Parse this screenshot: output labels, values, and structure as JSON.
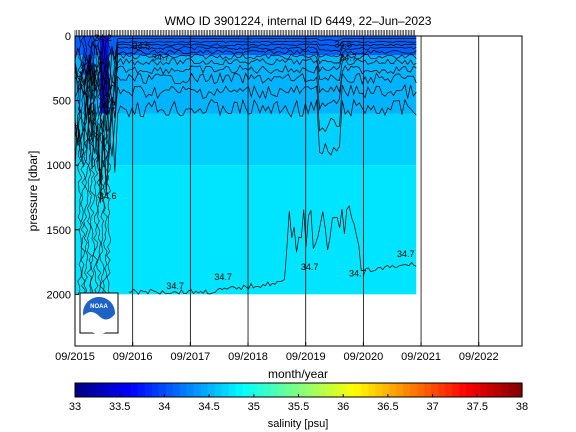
{
  "chart_data": {
    "type": "heatmap",
    "title": "WMO ID 3901224, internal ID 6449, 22–Jun–2023",
    "xlabel": "month/year",
    "ylabel": "pressure [dbar]",
    "x_tick_labels": [
      "09/2015",
      "09/2016",
      "09/2017",
      "09/2018",
      "09/2019",
      "09/2020",
      "09/2021",
      "09/2022"
    ],
    "x_range": [
      "2015-09",
      "2023-06"
    ],
    "data_end": "2021-08",
    "ylim": [
      2400,
      0
    ],
    "y_ticks": [
      0,
      500,
      1000,
      1500,
      2000
    ],
    "colorbar": {
      "label": "salinity [psu]",
      "range": [
        33,
        38
      ],
      "ticks": [
        "33",
        "33.5",
        "34",
        "34.5",
        "35",
        "35.5",
        "36",
        "36.5",
        "37",
        "37.5",
        "38"
      ]
    },
    "depth_bands": [
      {
        "top": 0,
        "bottom": 150,
        "salinity": 34.1
      },
      {
        "top": 150,
        "bottom": 600,
        "salinity": 34.5
      },
      {
        "top": 600,
        "bottom": 1000,
        "salinity": 34.65
      },
      {
        "top": 1000,
        "bottom": 2000,
        "salinity": 34.75
      }
    ],
    "contour_labels": [
      {
        "text": "34.7",
        "date": "2017-01",
        "p": 190
      },
      {
        "text": "34.7",
        "date": "2017-04",
        "p": 1960
      },
      {
        "text": "34.7",
        "date": "2018-02",
        "p": 1890
      },
      {
        "text": "34.7",
        "date": "2019-08",
        "p": 1810
      },
      {
        "text": "34.7",
        "date": "2020-04",
        "p": 190
      },
      {
        "text": "34.7",
        "date": "2020-06",
        "p": 1860
      },
      {
        "text": "34.7",
        "date": "2021-04",
        "p": 1710
      },
      {
        "text": "34.6",
        "date": "2016-02",
        "p": 1260
      },
      {
        "text": "34.5",
        "date": "2016-09",
        "p": 100
      },
      {
        "text": "34.5",
        "date": "2020-03",
        "p": 90
      },
      {
        "text": "34.5",
        "date": "2016-02",
        "p": 560
      },
      {
        "text": "34.2",
        "date": "2016-01",
        "p": 40
      }
    ],
    "logo_text": "NOAA"
  }
}
